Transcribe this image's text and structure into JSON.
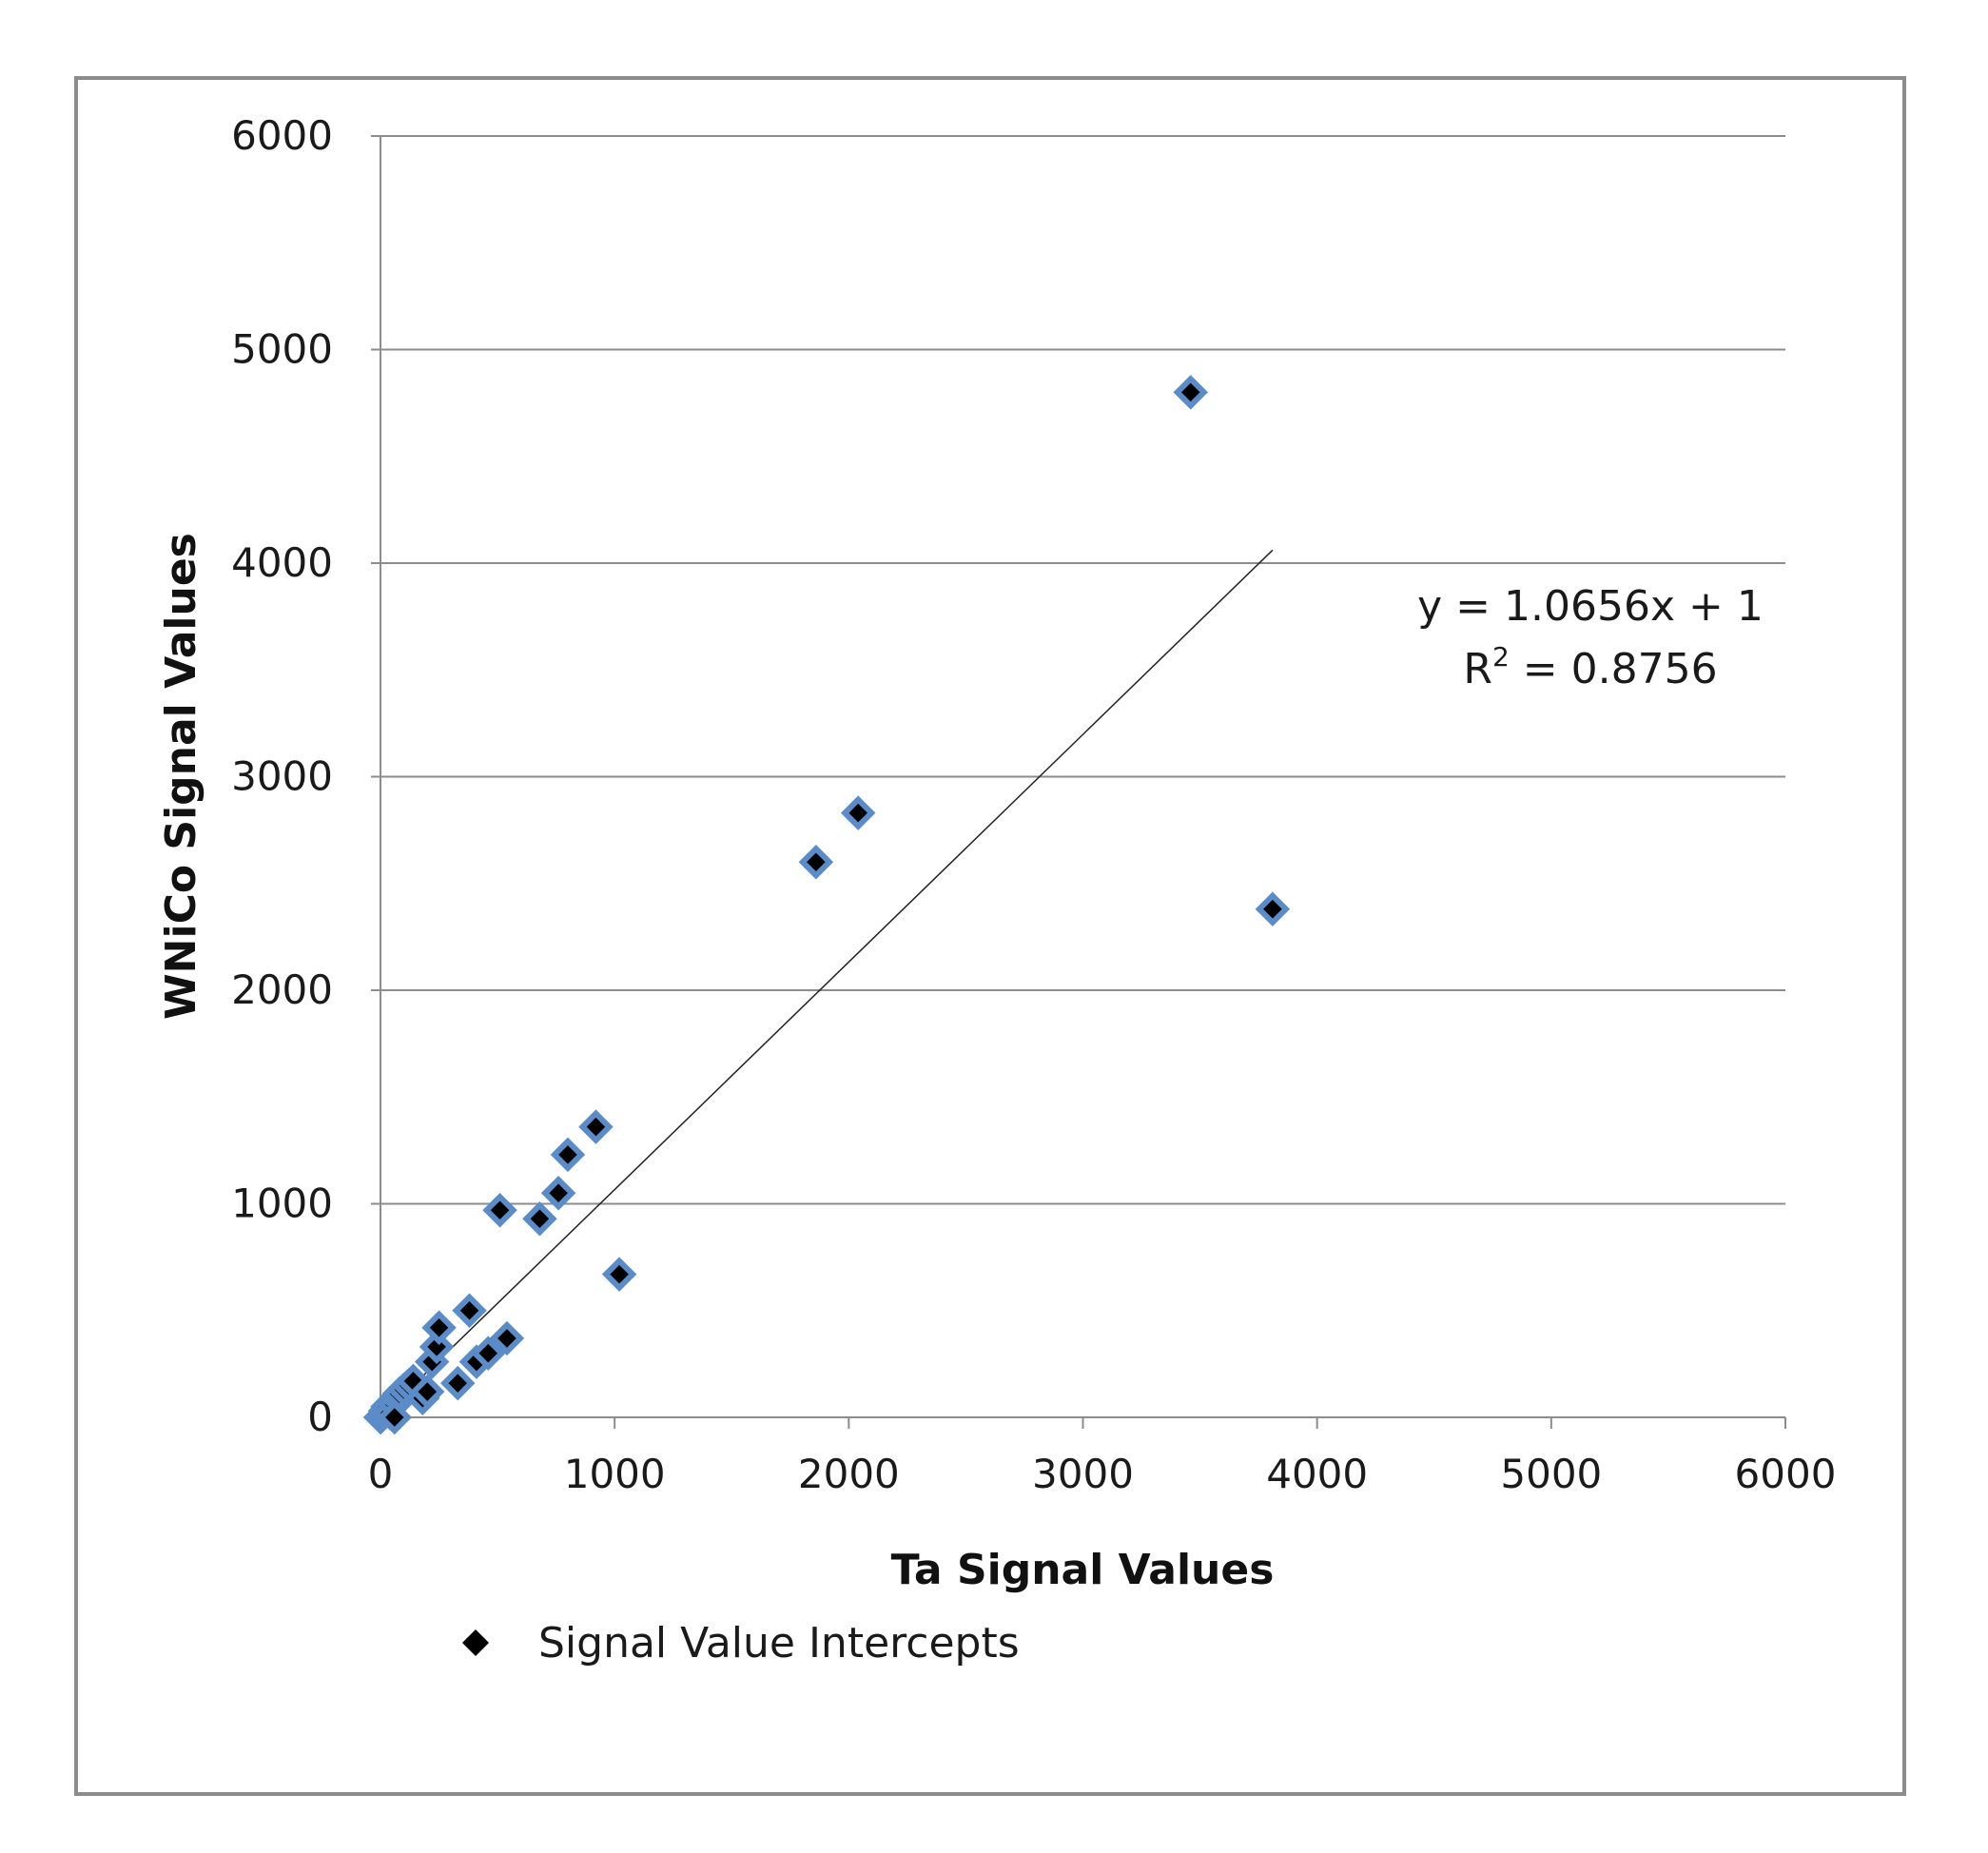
{
  "chart_data": {
    "type": "scatter",
    "xlabel": "Ta Signal Values",
    "ylabel": "WNiCo Signal Values",
    "xlim": [
      0,
      6000
    ],
    "ylim": [
      0,
      6000
    ],
    "xticks": [
      "0",
      "1000",
      "2000",
      "3000",
      "4000",
      "5000",
      "6000"
    ],
    "yticks": [
      "0",
      "1000",
      "2000",
      "3000",
      "4000",
      "5000",
      "6000"
    ],
    "grid": "horizontal",
    "legend_position": "bottom-left",
    "series": [
      {
        "name": "Signal Value Intercepts",
        "marker": "diamond",
        "color": "#000000",
        "outline_color": "#5b8cc8",
        "points": [
          [
            0,
            0
          ],
          [
            10,
            10
          ],
          [
            20,
            30
          ],
          [
            30,
            50
          ],
          [
            40,
            20
          ],
          [
            50,
            70
          ],
          [
            60,
            60
          ],
          [
            70,
            90
          ],
          [
            80,
            110
          ],
          [
            100,
            130
          ],
          [
            120,
            150
          ],
          [
            140,
            170
          ],
          [
            60,
            0
          ],
          [
            180,
            90
          ],
          [
            200,
            120
          ],
          [
            220,
            260
          ],
          [
            240,
            330
          ],
          [
            250,
            420
          ],
          [
            330,
            160
          ],
          [
            380,
            500
          ],
          [
            410,
            260
          ],
          [
            460,
            300
          ],
          [
            540,
            370
          ],
          [
            510,
            970
          ],
          [
            680,
            930
          ],
          [
            760,
            1050
          ],
          [
            800,
            1230
          ],
          [
            920,
            1360
          ],
          [
            1020,
            670
          ],
          [
            1860,
            2600
          ],
          [
            2040,
            2830
          ],
          [
            3460,
            4800
          ],
          [
            3810,
            2380
          ]
        ]
      }
    ],
    "trendline": {
      "equation": "y = 1.0656x + 1",
      "r2_prefix": "R",
      "r2_exp": "2",
      "r2_suffix": " = 0.8756",
      "slope": 1.0656,
      "intercept": 1,
      "x_range": [
        0,
        3810
      ]
    }
  }
}
